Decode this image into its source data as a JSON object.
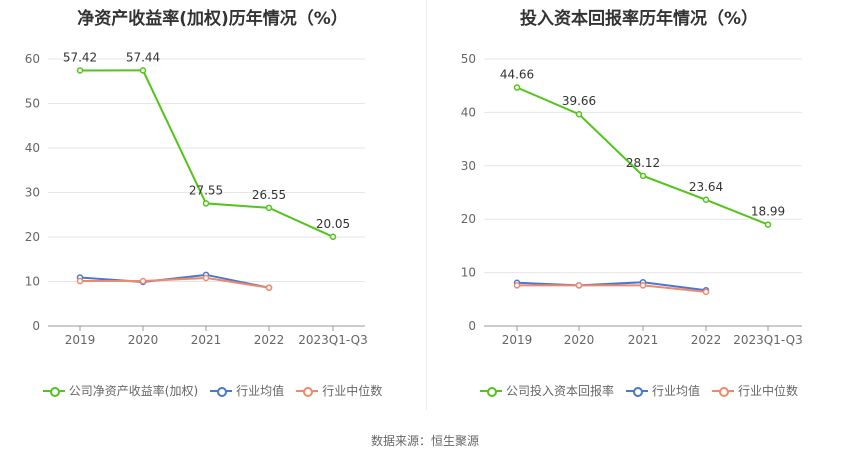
{
  "source": "数据来源：恒生聚源",
  "chart_data": [
    {
      "type": "line",
      "title": "净资产收益率(加权)历年情况（%）",
      "categories": [
        "2019",
        "2020",
        "2021",
        "2022",
        "2023Q1-Q3"
      ],
      "ylim": [
        0,
        60
      ],
      "yticks": [
        0,
        10,
        20,
        30,
        40,
        50,
        60
      ],
      "grid": true,
      "legend_position": "bottom",
      "series": [
        {
          "name": "公司净资产收益率(加权)",
          "color": "#52c41a",
          "values": [
            57.42,
            57.44,
            27.55,
            26.55,
            20.05
          ],
          "labels": [
            "57.42",
            "57.44",
            "27.55",
            "26.55",
            "20.05"
          ]
        },
        {
          "name": "行业均值",
          "color": "#4a77d4",
          "values": [
            10.9,
            9.9,
            11.5,
            8.6,
            null
          ]
        },
        {
          "name": "行业中位数",
          "color": "#f0896c",
          "values": [
            10.1,
            10.1,
            10.8,
            8.6,
            null
          ]
        }
      ]
    },
    {
      "type": "line",
      "title": "投入资本回报率历年情况（%）",
      "categories": [
        "2019",
        "2020",
        "2021",
        "2022",
        "2023Q1-Q3"
      ],
      "ylim": [
        0,
        50
      ],
      "yticks": [
        0,
        10,
        20,
        30,
        40,
        50
      ],
      "grid": true,
      "legend_position": "bottom",
      "series": [
        {
          "name": "公司投入资本回报率",
          "color": "#52c41a",
          "values": [
            44.66,
            39.66,
            28.12,
            23.64,
            18.99
          ],
          "labels": [
            "44.66",
            "39.66",
            "28.12",
            "23.64",
            "18.99"
          ]
        },
        {
          "name": "行业均值",
          "color": "#4a77d4",
          "values": [
            8.1,
            7.6,
            8.2,
            6.7,
            null
          ]
        },
        {
          "name": "行业中位数",
          "color": "#f0896c",
          "values": [
            7.6,
            7.6,
            7.6,
            6.4,
            null
          ]
        }
      ]
    }
  ]
}
